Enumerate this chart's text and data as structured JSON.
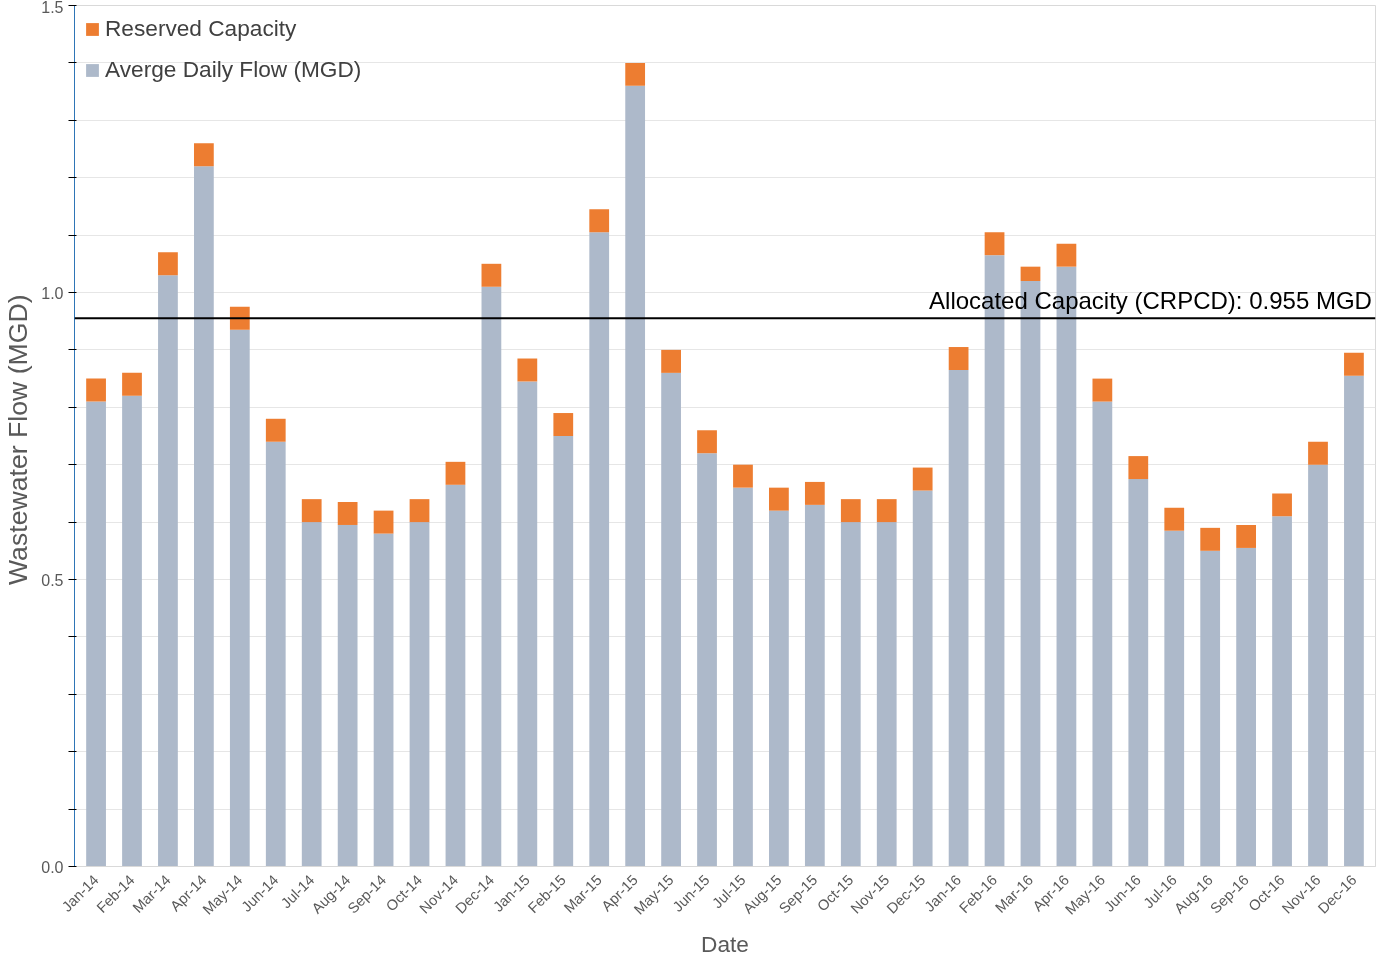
{
  "chart_data": {
    "type": "bar",
    "stacked": true,
    "xlabel": "Date",
    "ylabel": "Wastewater Flow  (MGD)",
    "categories": [
      "Jan-14",
      "Feb-14",
      "Mar-14",
      "Apr-14",
      "May-14",
      "Jun-14",
      "Jul-14",
      "Aug-14",
      "Sep-14",
      "Oct-14",
      "Nov-14",
      "Dec-14",
      "Jan-15",
      "Feb-15",
      "Mar-15",
      "Apr-15",
      "May-15",
      "Jun-15",
      "Jul-15",
      "Aug-15",
      "Sep-15",
      "Oct-15",
      "Nov-15",
      "Dec-15",
      "Jan-16",
      "Feb-16",
      "Mar-16",
      "Apr-16",
      "May-16",
      "Jun-16",
      "Jul-16",
      "Aug-16",
      "Sep-16",
      "Oct-16",
      "Nov-16",
      "Dec-16"
    ],
    "series": [
      {
        "name": "Averge Daily Flow (MGD)",
        "color": "#adb9ca",
        "values": [
          0.81,
          0.82,
          1.03,
          1.22,
          0.935,
          0.74,
          0.6,
          0.595,
          0.58,
          0.6,
          0.665,
          1.01,
          0.845,
          0.75,
          1.105,
          1.36,
          0.86,
          0.72,
          0.66,
          0.62,
          0.63,
          0.6,
          0.6,
          0.655,
          0.865,
          1.065,
          1.02,
          1.045,
          0.81,
          0.675,
          0.585,
          0.55,
          0.555,
          0.61,
          0.7,
          0.855
        ]
      },
      {
        "name": "Reserved Capacity",
        "color": "#ed7d31",
        "values": [
          0.04,
          0.04,
          0.04,
          0.04,
          0.04,
          0.04,
          0.04,
          0.04,
          0.04,
          0.04,
          0.04,
          0.04,
          0.04,
          0.04,
          0.04,
          0.04,
          0.04,
          0.04,
          0.04,
          0.04,
          0.04,
          0.04,
          0.04,
          0.04,
          0.04,
          0.04,
          0.025,
          0.04,
          0.04,
          0.04,
          0.04,
          0.04,
          0.04,
          0.04,
          0.04,
          0.04
        ]
      }
    ],
    "ylim": [
      0,
      1.5
    ],
    "yticks": [
      {
        "value": 0,
        "label": "0.0"
      },
      {
        "value": 0.1,
        "label": null
      },
      {
        "value": 0.2,
        "label": null
      },
      {
        "value": 0.3,
        "label": null
      },
      {
        "value": 0.4,
        "label": null
      },
      0.5,
      {
        "value": 0.6,
        "label": null
      },
      {
        "value": 0.7,
        "label": null
      },
      {
        "value": 0.8,
        "label": null
      },
      {
        "value": 0.9,
        "label": null
      },
      {
        "value": 1.0,
        "label": "1.0"
      },
      {
        "value": 1.1,
        "label": null
      },
      {
        "value": 1.2,
        "label": null
      },
      {
        "value": 1.3,
        "label": null
      },
      {
        "value": 1.4,
        "label": null
      },
      1.5
    ],
    "ref_lines": [
      {
        "axis": "y",
        "value": 0.955,
        "label": "Allocated Capacity (CRPCD): 0.955 MGD",
        "color": "#000000"
      }
    ],
    "grid": "y",
    "legend": "top left"
  }
}
